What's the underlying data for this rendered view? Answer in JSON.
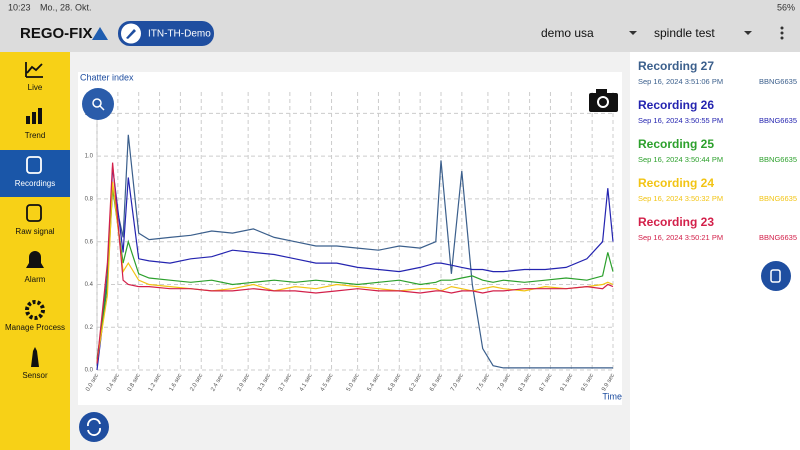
{
  "status_bar": {
    "time": "10:23",
    "date": "Mo., 28. Okt.",
    "battery": "56%"
  },
  "header": {
    "logo": "REGO-FIX",
    "site": "ITN-TH-Demo",
    "location": "demo usa",
    "machine": "spindle test"
  },
  "sidebar": [
    "Live",
    "Trend",
    "Recordings",
    "Raw signal",
    "Alarm",
    "Manage Process",
    "Sensor"
  ],
  "recordings": [
    {
      "date": "Sep 16, 2024 3:51:06 PM",
      "device": "BBNG6635"
    },
    {
      "date": "Sep 16, 2024 3:50:55 PM",
      "device": "BBNG6635"
    },
    {
      "date": "Sep 16, 2024 3:50:44 PM",
      "device": "BBNG6635"
    },
    {
      "date": "Sep 16, 2024 3:50:32 PM",
      "device": "BBNG6635"
    },
    {
      "date": "Sep 16, 2024 3:50:21 PM",
      "device": "BBNG6635"
    }
  ],
  "chart_data": {
    "type": "line",
    "title": "Chatter index",
    "x_label": "Time",
    "grid": true,
    "x": [
      0.0,
      0.2,
      0.3,
      0.5,
      0.6,
      0.8,
      1.0,
      1.4,
      1.8,
      2.2,
      2.6,
      3.0,
      3.4,
      3.8,
      4.2,
      4.6,
      5.0,
      5.4,
      5.8,
      6.2,
      6.5,
      6.6,
      6.8,
      7.0,
      7.2,
      7.4,
      7.6,
      7.8,
      8.2,
      8.6,
      9.0,
      9.4,
      9.7,
      9.8,
      9.9
    ],
    "xlim": [
      0,
      9.9
    ],
    "xticks": [
      {
        "value": 0.0,
        "label": "0.0 sec"
      },
      {
        "value": 0.4,
        "label": "0.4 sec"
      },
      {
        "value": 0.8,
        "label": "0.8 sec"
      },
      {
        "value": 1.2,
        "label": "1.2 sec"
      },
      {
        "value": 1.6,
        "label": "1.6 sec"
      },
      {
        "value": 2.0,
        "label": "2.0 sec"
      },
      {
        "value": 2.4,
        "label": "2.4 sec"
      },
      {
        "value": 2.9,
        "label": "2.9 sec"
      },
      {
        "value": 3.3,
        "label": "3.3 sec"
      },
      {
        "value": 3.7,
        "label": "3.7 sec"
      },
      {
        "value": 4.1,
        "label": "4.1 sec"
      },
      {
        "value": 4.5,
        "label": "4.5 sec"
      },
      {
        "value": 5.0,
        "label": "5.0 sec"
      },
      {
        "value": 5.4,
        "label": "5.4 sec"
      },
      {
        "value": 5.8,
        "label": "5.8 sec"
      },
      {
        "value": 6.2,
        "label": "6.2 sec"
      },
      {
        "value": 6.6,
        "label": "6.6 sec"
      },
      {
        "value": 7.0,
        "label": "7.0 sec"
      },
      {
        "value": 7.5,
        "label": "7.5 sec"
      },
      {
        "value": 7.9,
        "label": "7.9 sec"
      },
      {
        "value": 8.3,
        "label": "8.3 sec"
      },
      {
        "value": 8.7,
        "label": "8.7 sec"
      },
      {
        "value": 9.1,
        "label": "9.1 sec"
      },
      {
        "value": 9.5,
        "label": "9.5 sec"
      },
      {
        "value": 9.9,
        "label": "9.9 sec"
      }
    ],
    "ylim": [
      0,
      1.3
    ],
    "yticks": [
      {
        "value": 0,
        "label": "0.0"
      },
      {
        "value": 0.2,
        "label": "0.2"
      },
      {
        "value": 0.4,
        "label": "0.4"
      },
      {
        "value": 0.6,
        "label": "0.6"
      },
      {
        "value": 0.8,
        "label": "0.8"
      },
      {
        "value": 1.0,
        "label": "1.0"
      },
      {
        "value": 1.2,
        "label": "1.2"
      }
    ],
    "series": [
      {
        "name": "Recording 27",
        "color": "#3b5f8c",
        "values": [
          0.02,
          0.45,
          0.85,
          0.62,
          1.1,
          0.64,
          0.61,
          0.62,
          0.63,
          0.65,
          0.64,
          0.66,
          0.62,
          0.6,
          0.58,
          0.58,
          0.57,
          0.56,
          0.58,
          0.57,
          0.6,
          0.98,
          0.45,
          0.93,
          0.4,
          0.1,
          0.02,
          0.01,
          0.01,
          0.01,
          0.01,
          0.01,
          0.01,
          0.01,
          0.01
        ]
      },
      {
        "name": "Recording 26",
        "color": "#2424b0",
        "values": [
          0.0,
          0.4,
          0.95,
          0.55,
          0.9,
          0.52,
          0.51,
          0.5,
          0.52,
          0.53,
          0.56,
          0.55,
          0.54,
          0.52,
          0.5,
          0.5,
          0.48,
          0.47,
          0.46,
          0.48,
          0.5,
          0.5,
          0.49,
          0.48,
          0.47,
          0.47,
          0.46,
          0.46,
          0.47,
          0.47,
          0.48,
          0.52,
          0.6,
          0.85,
          0.6
        ]
      },
      {
        "name": "Recording 25",
        "color": "#2ca02c",
        "values": [
          0.05,
          0.4,
          0.85,
          0.5,
          0.6,
          0.45,
          0.43,
          0.42,
          0.41,
          0.42,
          0.4,
          0.41,
          0.42,
          0.41,
          0.42,
          0.41,
          0.4,
          0.41,
          0.42,
          0.4,
          0.41,
          0.42,
          0.42,
          0.43,
          0.44,
          0.42,
          0.41,
          0.42,
          0.41,
          0.42,
          0.43,
          0.42,
          0.44,
          0.55,
          0.46
        ]
      },
      {
        "name": "Recording 24",
        "color": "#f2c414",
        "values": [
          0.04,
          0.35,
          0.88,
          0.46,
          0.5,
          0.42,
          0.4,
          0.39,
          0.38,
          0.37,
          0.38,
          0.4,
          0.37,
          0.39,
          0.38,
          0.4,
          0.39,
          0.38,
          0.37,
          0.38,
          0.38,
          0.37,
          0.39,
          0.38,
          0.37,
          0.38,
          0.39,
          0.38,
          0.37,
          0.39,
          0.38,
          0.39,
          0.4,
          0.41,
          0.4
        ]
      },
      {
        "name": "Recording 23",
        "color": "#d3204a",
        "values": [
          0.03,
          0.5,
          0.97,
          0.42,
          0.4,
          0.39,
          0.39,
          0.38,
          0.38,
          0.37,
          0.37,
          0.38,
          0.37,
          0.37,
          0.36,
          0.37,
          0.38,
          0.37,
          0.37,
          0.36,
          0.37,
          0.37,
          0.36,
          0.37,
          0.37,
          0.36,
          0.37,
          0.37,
          0.38,
          0.38,
          0.38,
          0.39,
          0.38,
          0.4,
          0.39
        ]
      }
    ]
  }
}
